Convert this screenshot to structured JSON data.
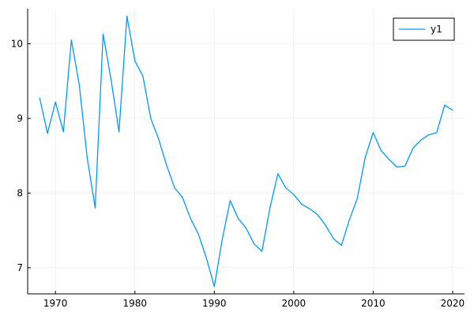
{
  "chart_data": {
    "type": "line",
    "title": "",
    "xlabel": "",
    "ylabel": "",
    "xlim": [
      1966.5,
      2021.5
    ],
    "ylim": [
      6.65,
      10.47
    ],
    "xticks": [
      1970,
      1980,
      1990,
      2000,
      2010,
      2020
    ],
    "yticks": [
      7,
      8,
      9,
      10
    ],
    "grid": true,
    "legend_position": "top-right",
    "series": [
      {
        "name": "y1",
        "color": "#009af9",
        "x": [
          1968,
          1969,
          1970,
          1971,
          1972,
          1973,
          1974,
          1975,
          1976,
          1977,
          1978,
          1979,
          1980,
          1981,
          1982,
          1983,
          1984,
          1985,
          1986,
          1987,
          1988,
          1989,
          1990,
          1991,
          1992,
          1993,
          1994,
          1995,
          1996,
          1997,
          1998,
          1999,
          2000,
          2001,
          2002,
          2003,
          2004,
          2005,
          2006,
          2007,
          2008,
          2009,
          2010,
          2011,
          2012,
          2013,
          2014,
          2015,
          2016,
          2017,
          2018,
          2019,
          2020
        ],
        "y": [
          9.28,
          8.8,
          9.22,
          8.82,
          10.05,
          9.45,
          8.47,
          7.8,
          10.13,
          9.52,
          8.82,
          10.37,
          9.77,
          9.57,
          9.0,
          8.72,
          8.37,
          8.07,
          7.94,
          7.66,
          7.45,
          7.13,
          6.75,
          7.38,
          7.9,
          7.66,
          7.53,
          7.32,
          7.22,
          7.8,
          8.26,
          8.07,
          7.98,
          7.85,
          7.79,
          7.71,
          7.57,
          7.39,
          7.3,
          7.64,
          7.93,
          8.48,
          8.81,
          8.57,
          8.45,
          8.35,
          8.36,
          8.6,
          8.71,
          8.78,
          8.81,
          9.18,
          9.11
        ]
      }
    ]
  }
}
